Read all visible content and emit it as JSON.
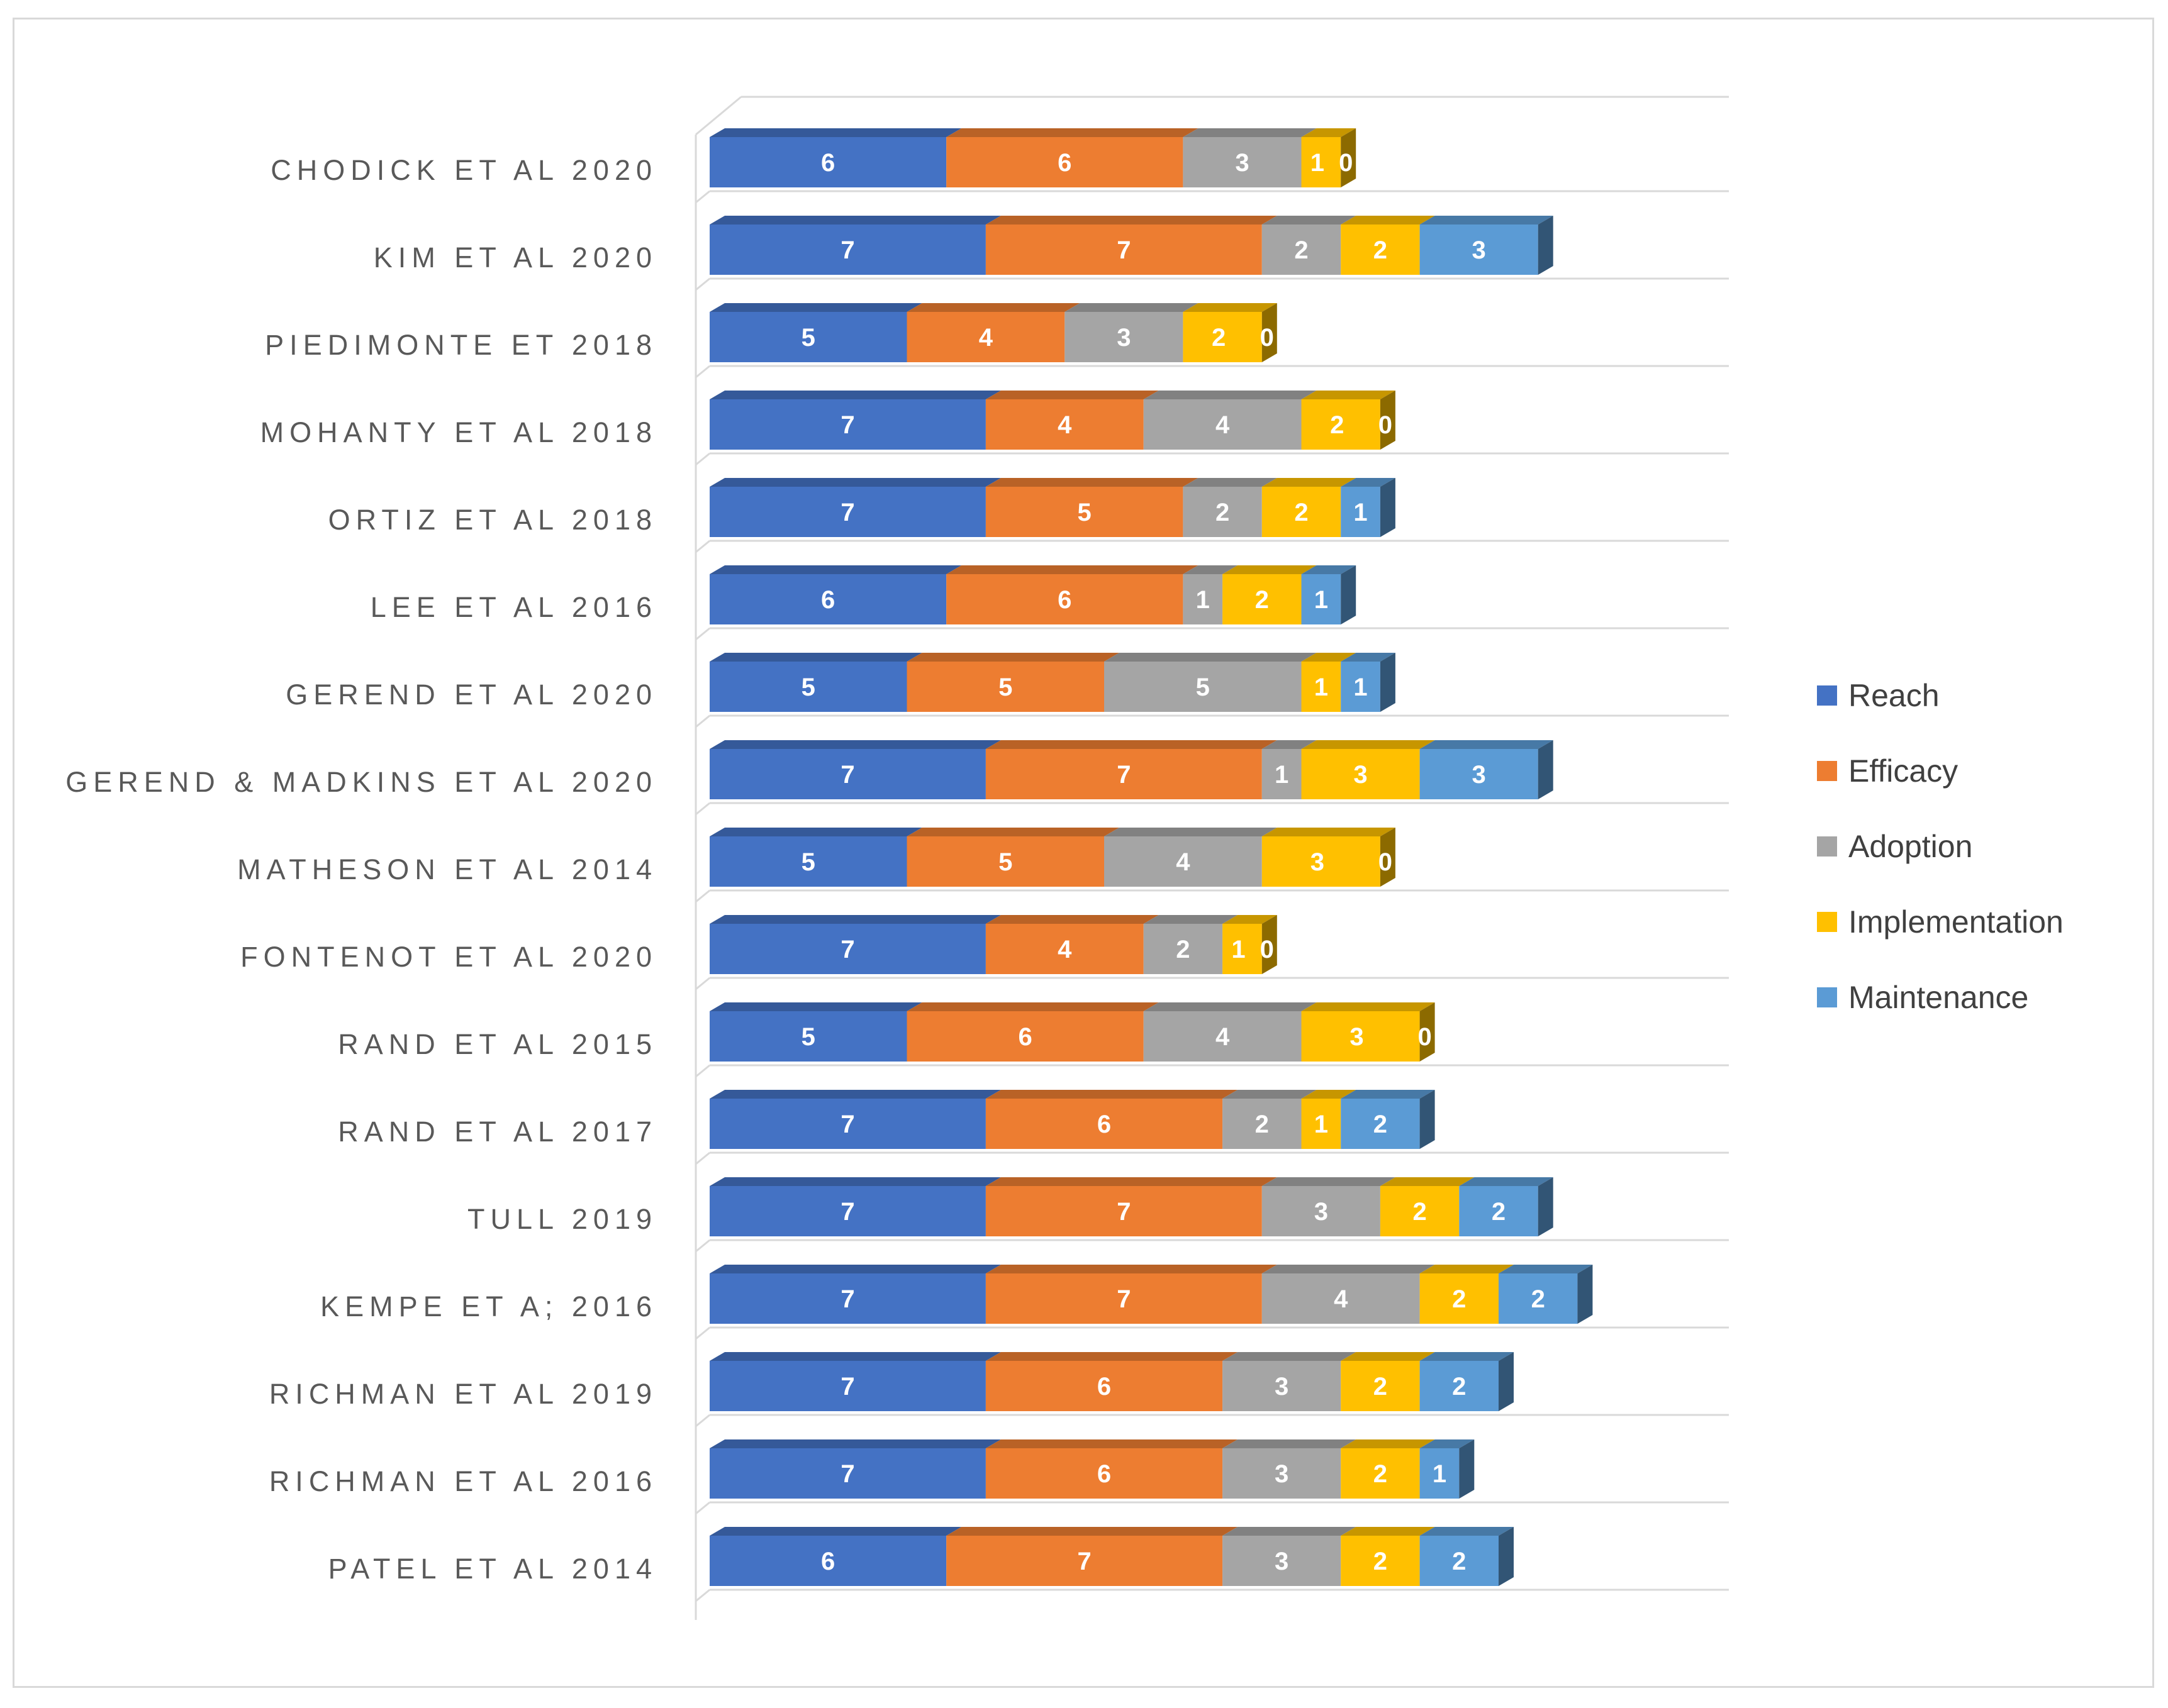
{
  "chart_data": {
    "type": "bar",
    "orientation": "horizontal",
    "stacked": true,
    "style": "3d",
    "title": "",
    "xlabel": "",
    "ylabel": "",
    "xlim": [
      0,
      26
    ],
    "grid": true,
    "legend_position": "right",
    "categories": [
      "CHODICK ET AL 2020",
      "KIM ET AL 2020",
      "PIEDIMONTE ET 2018",
      "MOHANTY ET AL 2018",
      "ORTIZ ET AL 2018",
      "LEE ET AL 2016",
      "GEREND ET AL 2020",
      "GEREND & MADKINS ET AL 2020",
      "MATHESON ET AL 2014",
      "FONTENOT ET AL 2020",
      "RAND ET AL 2015",
      "RAND ET AL 2017",
      "TULL 2019",
      "KEMPE ET A; 2016",
      "RICHMAN ET AL 2019",
      "RICHMAN ET AL 2016",
      "PATEL ET AL 2014"
    ],
    "series": [
      {
        "name": "Reach",
        "color": "#4472c4",
        "values": [
          6,
          7,
          5,
          7,
          7,
          6,
          5,
          7,
          5,
          7,
          5,
          7,
          7,
          7,
          7,
          7,
          6
        ]
      },
      {
        "name": "Efficacy",
        "color": "#ed7d31",
        "values": [
          6,
          7,
          4,
          4,
          5,
          6,
          5,
          7,
          5,
          4,
          6,
          6,
          7,
          7,
          6,
          6,
          7
        ]
      },
      {
        "name": "Adoption",
        "color": "#a5a5a5",
        "values": [
          3,
          2,
          3,
          4,
          2,
          1,
          5,
          1,
          4,
          2,
          4,
          2,
          3,
          4,
          3,
          3,
          3
        ]
      },
      {
        "name": "Implementation",
        "color": "#ffc000",
        "values": [
          1,
          2,
          2,
          2,
          2,
          2,
          1,
          3,
          3,
          1,
          3,
          1,
          2,
          2,
          2,
          2,
          2
        ]
      },
      {
        "name": "Maintenance",
        "color": "#5b9bd5",
        "values": [
          0,
          3,
          0,
          0,
          1,
          1,
          1,
          3,
          0,
          0,
          0,
          2,
          2,
          2,
          2,
          1,
          2
        ]
      }
    ]
  }
}
